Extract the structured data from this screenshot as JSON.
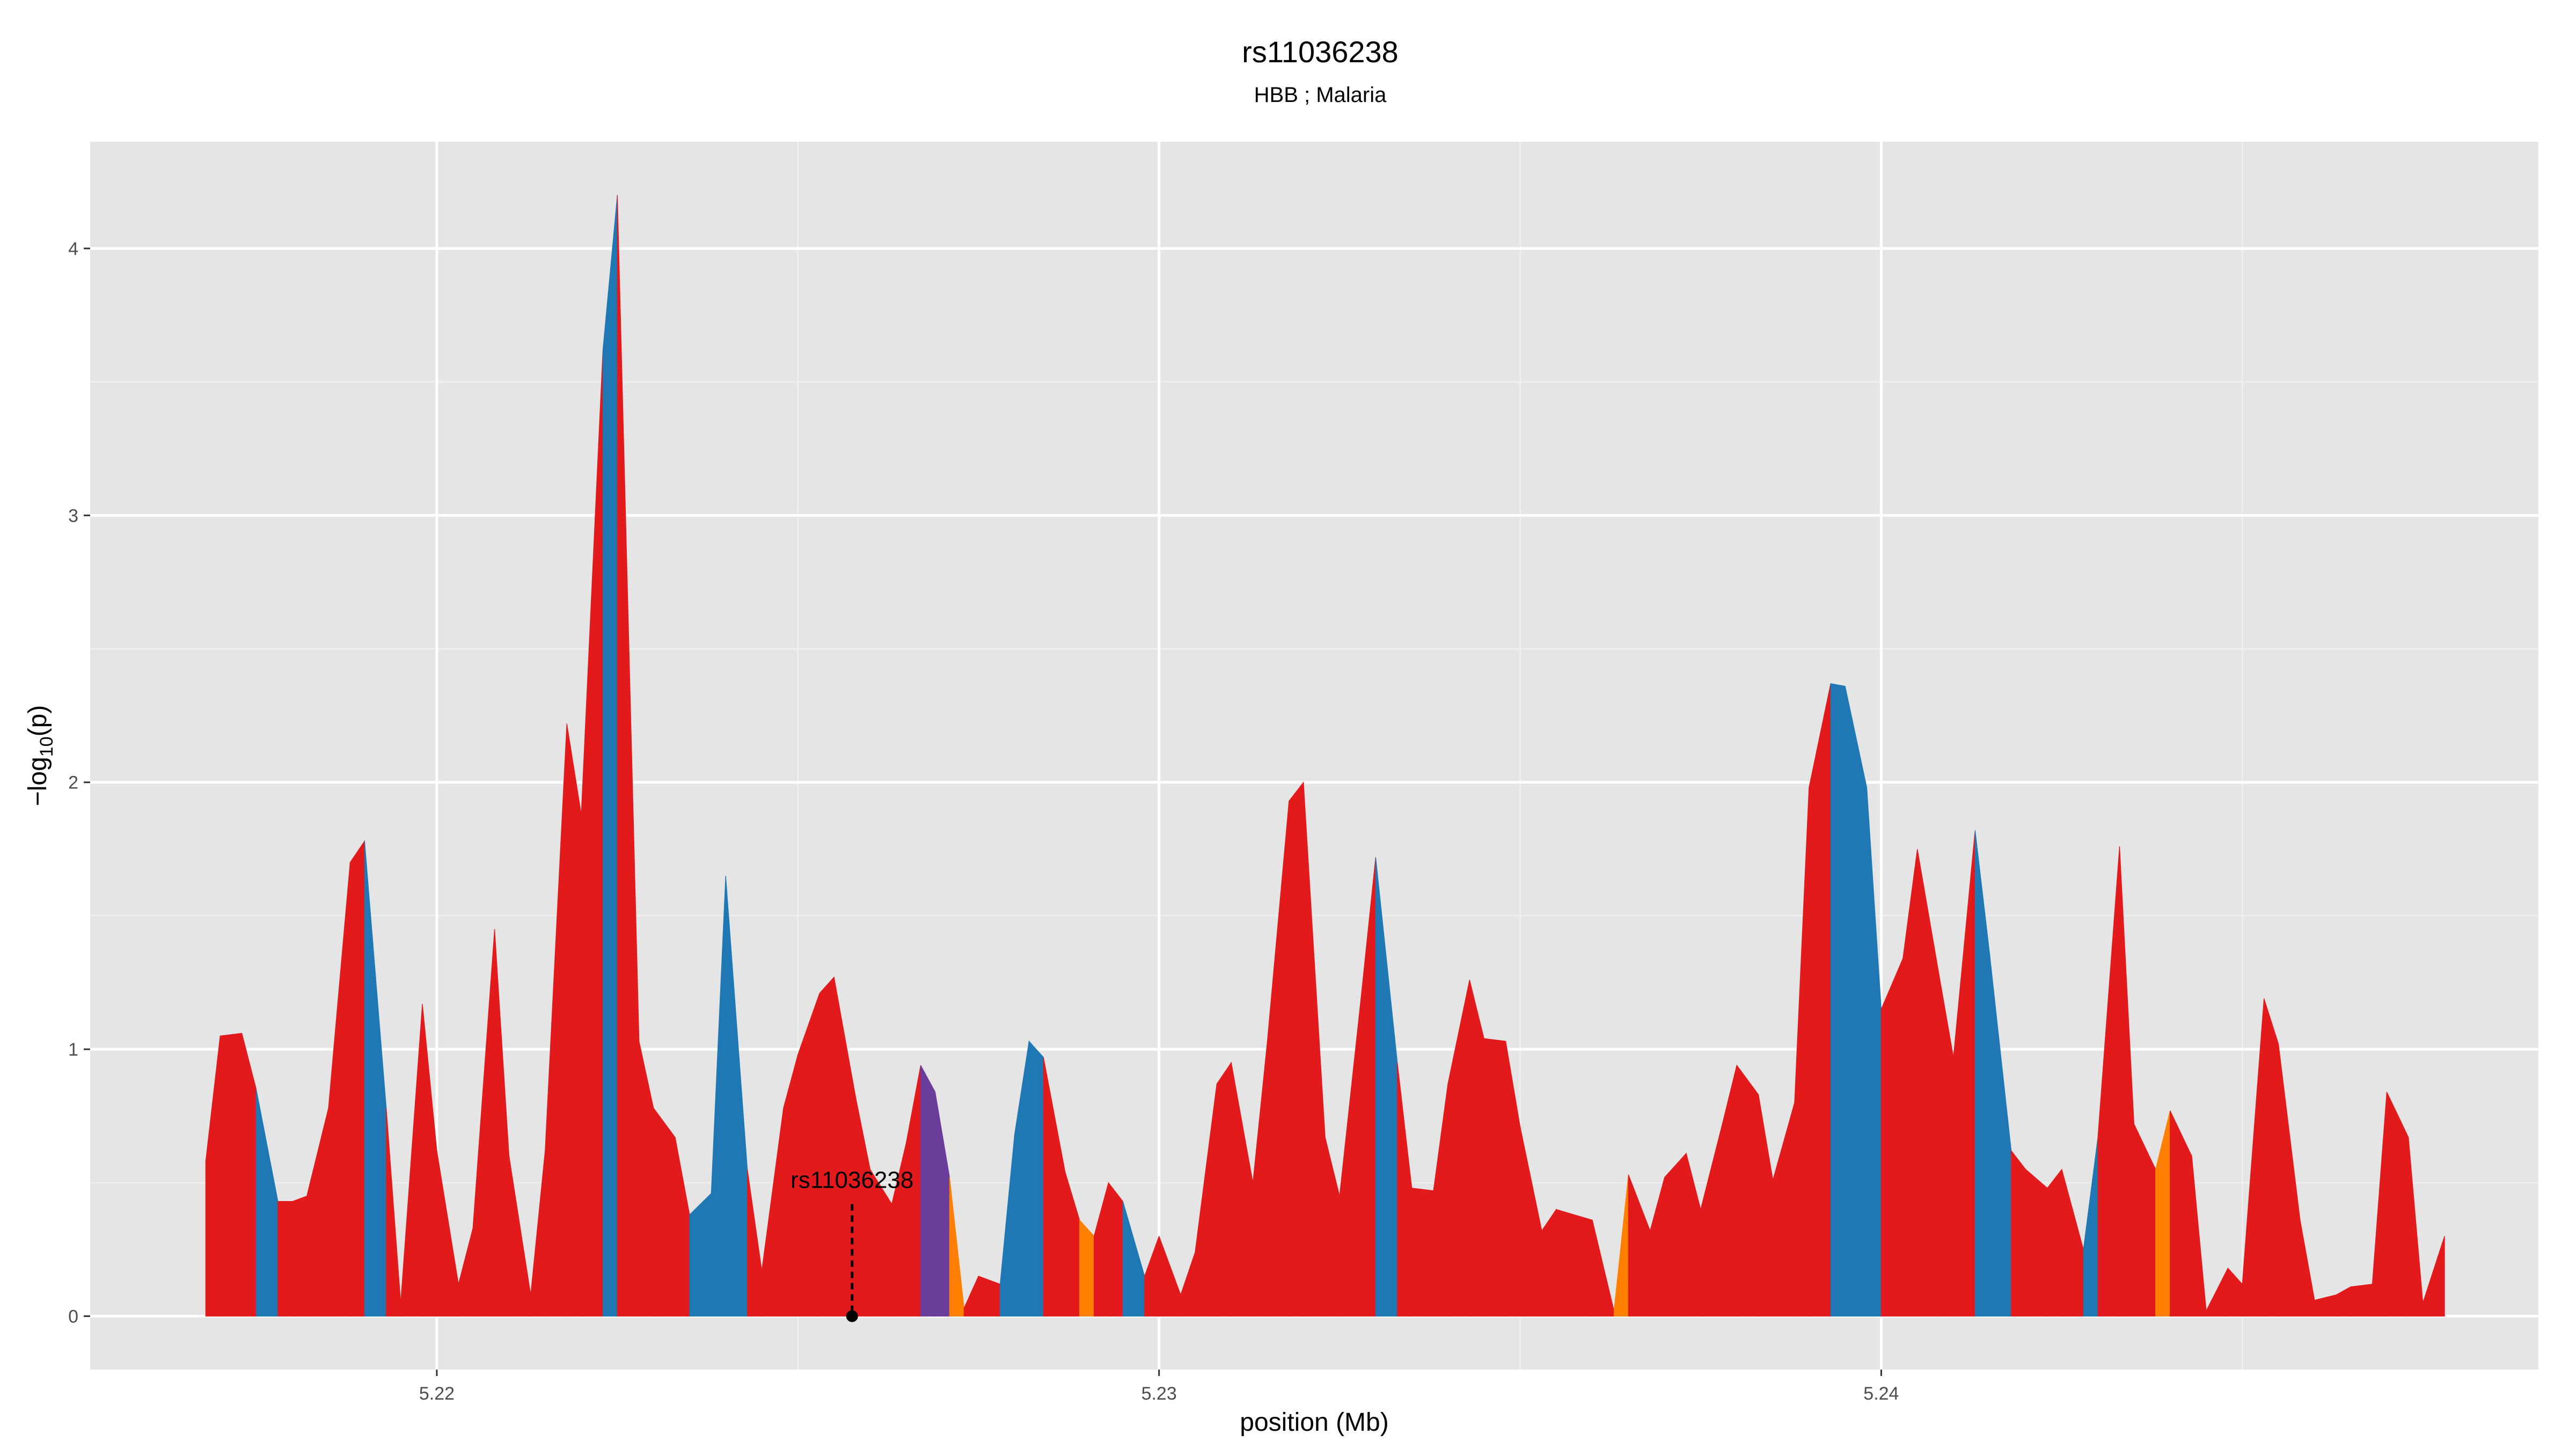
{
  "chart_data": {
    "type": "area",
    "title": "rs11036238",
    "subtitle": "HBB ; Malaria",
    "xlabel": "position (Mb)",
    "ylabel_main": "−log",
    "ylabel_sub": "10",
    "ylabel_tail": "(p)",
    "xlim": [
      5.2152,
      5.2491
    ],
    "ylim": [
      -0.2,
      4.4
    ],
    "x_ticks": [
      5.22,
      5.23,
      5.24
    ],
    "x_tick_labels": [
      "5.22",
      "5.23",
      "5.24"
    ],
    "y_ticks": [
      0,
      1,
      2,
      3,
      4
    ],
    "y_tick_labels": [
      "0",
      "1",
      "2",
      "3",
      "4"
    ],
    "grid": true,
    "colors": {
      "panel": "#e5e5e5",
      "grid_major": "#ffffff",
      "grid_minor": "#f2f2f2",
      "red": "#e31a1c",
      "blue": "#1f78b4",
      "orange": "#ff7f00",
      "purple": "#6a3d9a"
    },
    "points": [
      {
        "x": 5.2168,
        "y": 0.58,
        "c": "red"
      },
      {
        "x": 5.217,
        "y": 1.05,
        "c": "red"
      },
      {
        "x": 5.2173,
        "y": 1.06,
        "c": "red"
      },
      {
        "x": 5.2175,
        "y": 0.85,
        "c": "blue"
      },
      {
        "x": 5.2178,
        "y": 0.43,
        "c": "red"
      },
      {
        "x": 5.218,
        "y": 0.43,
        "c": "red"
      },
      {
        "x": 5.2182,
        "y": 0.45,
        "c": "red"
      },
      {
        "x": 5.2185,
        "y": 0.78,
        "c": "red"
      },
      {
        "x": 5.2188,
        "y": 1.7,
        "c": "red"
      },
      {
        "x": 5.219,
        "y": 1.78,
        "c": "blue"
      },
      {
        "x": 5.2193,
        "y": 0.78,
        "c": "red"
      },
      {
        "x": 5.2195,
        "y": 0.05,
        "c": "red"
      },
      {
        "x": 5.2198,
        "y": 1.17,
        "c": "red"
      },
      {
        "x": 5.22,
        "y": 0.62,
        "c": "red"
      },
      {
        "x": 5.2203,
        "y": 0.12,
        "c": "red"
      },
      {
        "x": 5.2205,
        "y": 0.33,
        "c": "red"
      },
      {
        "x": 5.2208,
        "y": 1.45,
        "c": "red"
      },
      {
        "x": 5.221,
        "y": 0.6,
        "c": "red"
      },
      {
        "x": 5.2213,
        "y": 0.08,
        "c": "red"
      },
      {
        "x": 5.2215,
        "y": 0.62,
        "c": "red"
      },
      {
        "x": 5.2218,
        "y": 2.22,
        "c": "red"
      },
      {
        "x": 5.222,
        "y": 1.88,
        "c": "red"
      },
      {
        "x": 5.2223,
        "y": 3.62,
        "c": "blue"
      },
      {
        "x": 5.2225,
        "y": 4.2,
        "c": "red"
      },
      {
        "x": 5.2228,
        "y": 1.03,
        "c": "red"
      },
      {
        "x": 5.223,
        "y": 0.78,
        "c": "red"
      },
      {
        "x": 5.2233,
        "y": 0.67,
        "c": "red"
      },
      {
        "x": 5.2235,
        "y": 0.38,
        "c": "blue"
      },
      {
        "x": 5.2238,
        "y": 0.46,
        "c": "blue"
      },
      {
        "x": 5.224,
        "y": 1.65,
        "c": "blue"
      },
      {
        "x": 5.2243,
        "y": 0.55,
        "c": "red"
      },
      {
        "x": 5.2245,
        "y": 0.17,
        "c": "red"
      },
      {
        "x": 5.2248,
        "y": 0.78,
        "c": "red"
      },
      {
        "x": 5.225,
        "y": 0.98,
        "c": "red"
      },
      {
        "x": 5.2253,
        "y": 1.21,
        "c": "red"
      },
      {
        "x": 5.2255,
        "y": 1.27,
        "c": "red"
      },
      {
        "x": 5.2258,
        "y": 0.82,
        "c": "red"
      },
      {
        "x": 5.226,
        "y": 0.55,
        "c": "red"
      },
      {
        "x": 5.2263,
        "y": 0.42,
        "c": "red"
      },
      {
        "x": 5.2265,
        "y": 0.65,
        "c": "red"
      },
      {
        "x": 5.2267,
        "y": 0.94,
        "c": "purple"
      },
      {
        "x": 5.2269,
        "y": 0.84,
        "c": "purple"
      },
      {
        "x": 5.2271,
        "y": 0.52,
        "c": "orange"
      },
      {
        "x": 5.2273,
        "y": 0.03,
        "c": "red"
      },
      {
        "x": 5.2275,
        "y": 0.15,
        "c": "red"
      },
      {
        "x": 5.2278,
        "y": 0.12,
        "c": "blue"
      },
      {
        "x": 5.228,
        "y": 0.68,
        "c": "blue"
      },
      {
        "x": 5.2282,
        "y": 1.03,
        "c": "blue"
      },
      {
        "x": 5.2284,
        "y": 0.97,
        "c": "red"
      },
      {
        "x": 5.2287,
        "y": 0.54,
        "c": "red"
      },
      {
        "x": 5.2289,
        "y": 0.36,
        "c": "orange"
      },
      {
        "x": 5.2291,
        "y": 0.3,
        "c": "red"
      },
      {
        "x": 5.2293,
        "y": 0.5,
        "c": "red"
      },
      {
        "x": 5.2295,
        "y": 0.43,
        "c": "blue"
      },
      {
        "x": 5.2298,
        "y": 0.15,
        "c": "red"
      },
      {
        "x": 5.23,
        "y": 0.3,
        "c": "red"
      },
      {
        "x": 5.2303,
        "y": 0.08,
        "c": "red"
      },
      {
        "x": 5.2305,
        "y": 0.24,
        "c": "red"
      },
      {
        "x": 5.2308,
        "y": 0.87,
        "c": "red"
      },
      {
        "x": 5.231,
        "y": 0.95,
        "c": "red"
      },
      {
        "x": 5.2313,
        "y": 0.5,
        "c": "red"
      },
      {
        "x": 5.2315,
        "y": 1.03,
        "c": "red"
      },
      {
        "x": 5.2318,
        "y": 1.93,
        "c": "red"
      },
      {
        "x": 5.232,
        "y": 2.0,
        "c": "red"
      },
      {
        "x": 5.2323,
        "y": 0.67,
        "c": "red"
      },
      {
        "x": 5.2325,
        "y": 0.45,
        "c": "red"
      },
      {
        "x": 5.2328,
        "y": 1.2,
        "c": "red"
      },
      {
        "x": 5.233,
        "y": 1.72,
        "c": "blue"
      },
      {
        "x": 5.2333,
        "y": 0.95,
        "c": "red"
      },
      {
        "x": 5.2335,
        "y": 0.48,
        "c": "red"
      },
      {
        "x": 5.2338,
        "y": 0.47,
        "c": "red"
      },
      {
        "x": 5.234,
        "y": 0.87,
        "c": "red"
      },
      {
        "x": 5.2343,
        "y": 1.26,
        "c": "red"
      },
      {
        "x": 5.2345,
        "y": 1.04,
        "c": "red"
      },
      {
        "x": 5.2348,
        "y": 1.03,
        "c": "red"
      },
      {
        "x": 5.235,
        "y": 0.71,
        "c": "red"
      },
      {
        "x": 5.2353,
        "y": 0.32,
        "c": "red"
      },
      {
        "x": 5.2355,
        "y": 0.4,
        "c": "red"
      },
      {
        "x": 5.236,
        "y": 0.36,
        "c": "red"
      },
      {
        "x": 5.2363,
        "y": 0.02,
        "c": "orange"
      },
      {
        "x": 5.2365,
        "y": 0.53,
        "c": "red"
      },
      {
        "x": 5.2368,
        "y": 0.32,
        "c": "red"
      },
      {
        "x": 5.237,
        "y": 0.52,
        "c": "red"
      },
      {
        "x": 5.2373,
        "y": 0.61,
        "c": "red"
      },
      {
        "x": 5.2375,
        "y": 0.4,
        "c": "red"
      },
      {
        "x": 5.2378,
        "y": 0.72,
        "c": "red"
      },
      {
        "x": 5.238,
        "y": 0.94,
        "c": "red"
      },
      {
        "x": 5.2383,
        "y": 0.83,
        "c": "red"
      },
      {
        "x": 5.2385,
        "y": 0.51,
        "c": "red"
      },
      {
        "x": 5.2388,
        "y": 0.8,
        "c": "red"
      },
      {
        "x": 5.239,
        "y": 1.98,
        "c": "red"
      },
      {
        "x": 5.2393,
        "y": 2.37,
        "c": "blue"
      },
      {
        "x": 5.2395,
        "y": 2.36,
        "c": "blue"
      },
      {
        "x": 5.2398,
        "y": 1.98,
        "c": "blue"
      },
      {
        "x": 5.24,
        "y": 1.15,
        "c": "red"
      },
      {
        "x": 5.2403,
        "y": 1.34,
        "c": "red"
      },
      {
        "x": 5.2405,
        "y": 1.75,
        "c": "red"
      },
      {
        "x": 5.2408,
        "y": 1.28,
        "c": "red"
      },
      {
        "x": 5.241,
        "y": 0.97,
        "c": "red"
      },
      {
        "x": 5.2413,
        "y": 1.82,
        "c": "blue"
      },
      {
        "x": 5.2415,
        "y": 1.36,
        "c": "blue"
      },
      {
        "x": 5.2418,
        "y": 0.62,
        "c": "red"
      },
      {
        "x": 5.242,
        "y": 0.55,
        "c": "red"
      },
      {
        "x": 5.2423,
        "y": 0.48,
        "c": "red"
      },
      {
        "x": 5.2425,
        "y": 0.55,
        "c": "red"
      },
      {
        "x": 5.2428,
        "y": 0.25,
        "c": "blue"
      },
      {
        "x": 5.243,
        "y": 0.67,
        "c": "red"
      },
      {
        "x": 5.2433,
        "y": 1.76,
        "c": "red"
      },
      {
        "x": 5.2435,
        "y": 0.72,
        "c": "red"
      },
      {
        "x": 5.2438,
        "y": 0.55,
        "c": "orange"
      },
      {
        "x": 5.244,
        "y": 0.77,
        "c": "red"
      },
      {
        "x": 5.2443,
        "y": 0.6,
        "c": "red"
      },
      {
        "x": 5.2445,
        "y": 0.02,
        "c": "red"
      },
      {
        "x": 5.2448,
        "y": 0.18,
        "c": "red"
      },
      {
        "x": 5.245,
        "y": 0.12,
        "c": "red"
      },
      {
        "x": 5.2453,
        "y": 1.19,
        "c": "red"
      },
      {
        "x": 5.2455,
        "y": 1.02,
        "c": "red"
      },
      {
        "x": 5.2458,
        "y": 0.36,
        "c": "red"
      },
      {
        "x": 5.246,
        "y": 0.06,
        "c": "red"
      },
      {
        "x": 5.2463,
        "y": 0.08,
        "c": "red"
      },
      {
        "x": 5.2465,
        "y": 0.11,
        "c": "red"
      },
      {
        "x": 5.2468,
        "y": 0.12,
        "c": "red"
      },
      {
        "x": 5.247,
        "y": 0.84,
        "c": "red"
      },
      {
        "x": 5.2473,
        "y": 0.67,
        "c": "red"
      },
      {
        "x": 5.2475,
        "y": 0.05,
        "c": "red"
      },
      {
        "x": 5.2478,
        "y": 0.3,
        "c": "red"
      }
    ],
    "annotation": {
      "label": "rs11036238",
      "x": 5.22575,
      "y": 0.0,
      "label_y": 0.42
    }
  }
}
